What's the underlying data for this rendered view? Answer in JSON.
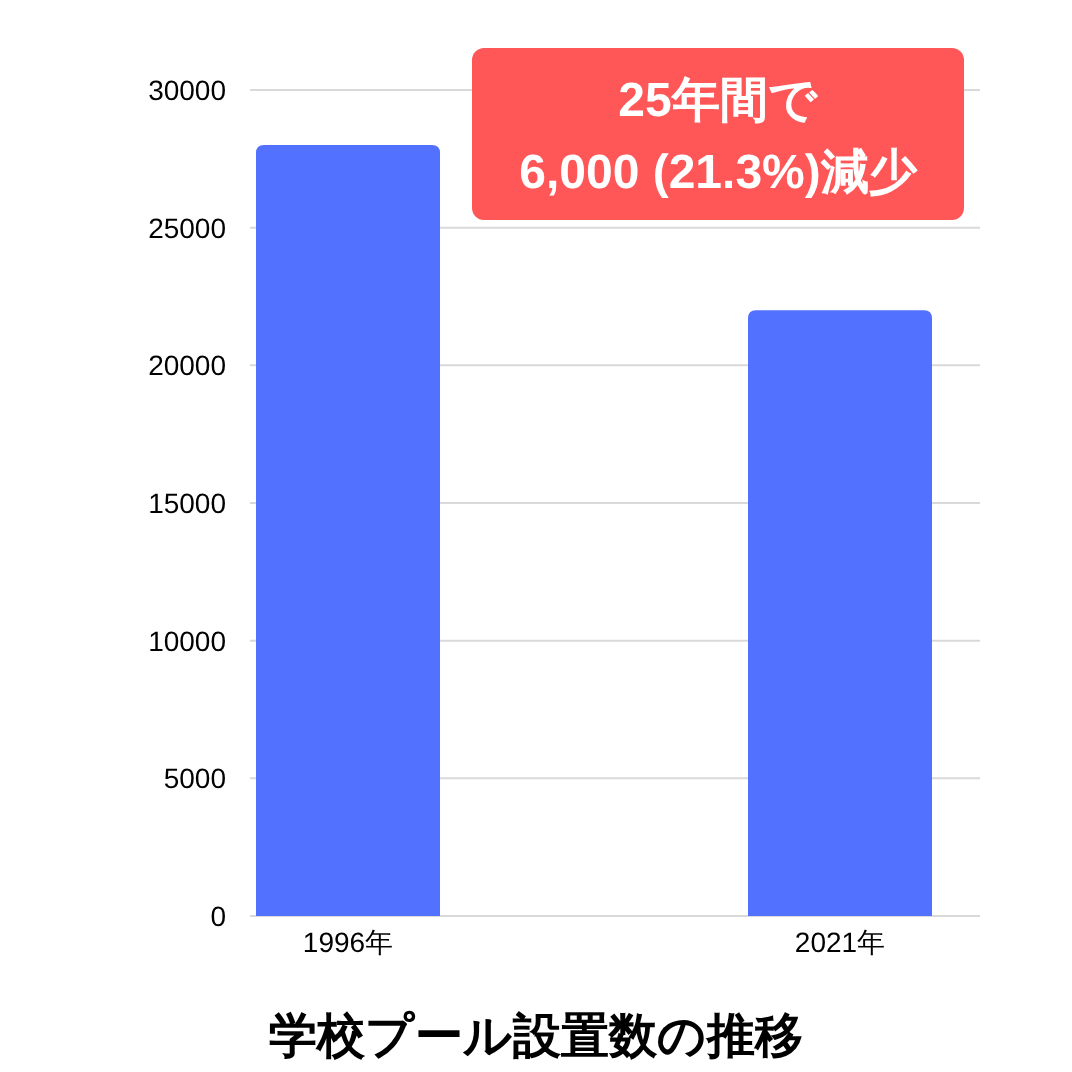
{
  "chart_data": {
    "type": "bar",
    "title": "学校プール設置数の推移",
    "categories": [
      "1996年",
      "2021年"
    ],
    "values": [
      28000,
      22000
    ],
    "color": "#5271ff",
    "ylim": [
      0,
      30000
    ],
    "yticks": [
      0,
      5000,
      10000,
      15000,
      20000,
      25000,
      30000
    ],
    "grid": "y",
    "annotations": [
      "25年間で\n6,000 (21.3%)減少"
    ]
  }
}
